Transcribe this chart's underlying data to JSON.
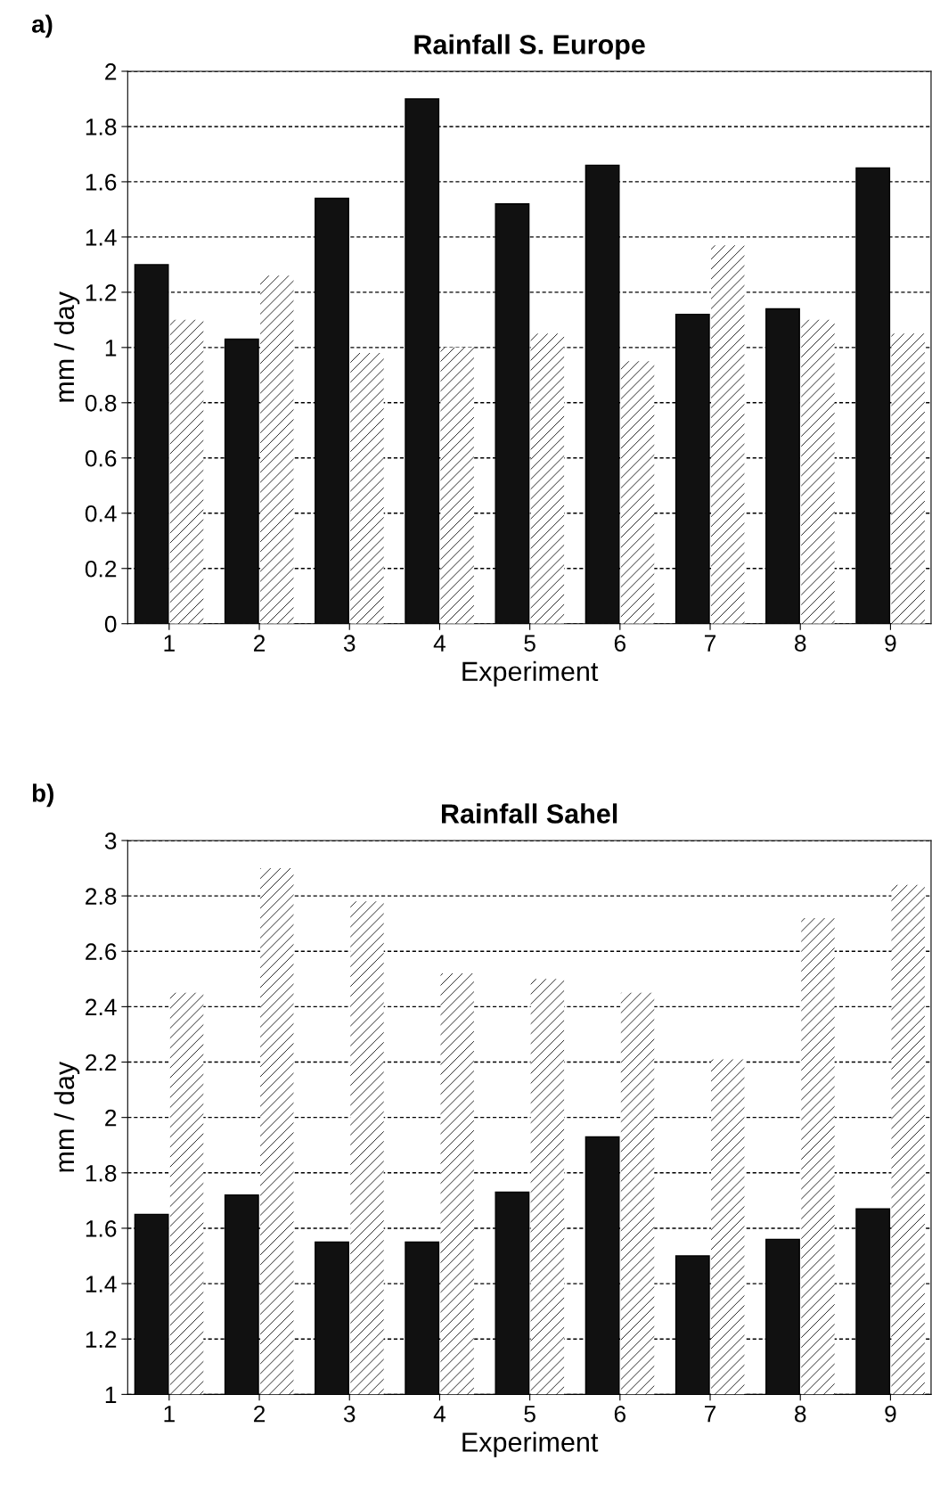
{
  "chart_data": [
    {
      "type": "bar",
      "title": "Rainfall S. Europe",
      "xlabel": "Experiment",
      "ylabel": "mm / day",
      "annotations": [
        "a)"
      ],
      "categories": [
        "1",
        "2",
        "3",
        "4",
        "5",
        "6",
        "7",
        "8",
        "9"
      ],
      "series": [
        {
          "color": "#111111",
          "values": [
            1.3,
            1.03,
            1.54,
            1.9,
            1.52,
            1.66,
            1.12,
            1.14,
            1.65
          ]
        },
        {
          "color": "#ffffff",
          "values": [
            1.1,
            1.26,
            0.98,
            1.0,
            1.05,
            0.95,
            1.37,
            1.1,
            1.05
          ]
        }
      ],
      "ylim": [
        0,
        2
      ],
      "yticks": [
        0,
        0.2,
        0.4,
        0.6,
        0.8,
        1,
        1.2,
        1.4,
        1.6,
        1.8,
        2
      ],
      "grid": "y",
      "legend": false
    },
    {
      "type": "bar",
      "title": "Rainfall Sahel",
      "xlabel": "Experiment",
      "ylabel": "mm / day",
      "annotations": [
        "b)"
      ],
      "categories": [
        "1",
        "2",
        "3",
        "4",
        "5",
        "6",
        "7",
        "8",
        "9"
      ],
      "series": [
        {
          "color": "#111111",
          "values": [
            1.65,
            1.72,
            1.55,
            1.55,
            1.73,
            1.93,
            1.5,
            1.56,
            1.67
          ]
        },
        {
          "color": "#ffffff",
          "values": [
            2.45,
            2.9,
            2.78,
            2.52,
            2.5,
            2.45,
            2.21,
            2.72,
            2.84
          ]
        }
      ],
      "ylim": [
        1,
        3
      ],
      "yticks": [
        1,
        1.2,
        1.4,
        1.6,
        1.8,
        2,
        2.2,
        2.4,
        2.6,
        2.8,
        3
      ],
      "grid": "y",
      "legend": false
    }
  ]
}
